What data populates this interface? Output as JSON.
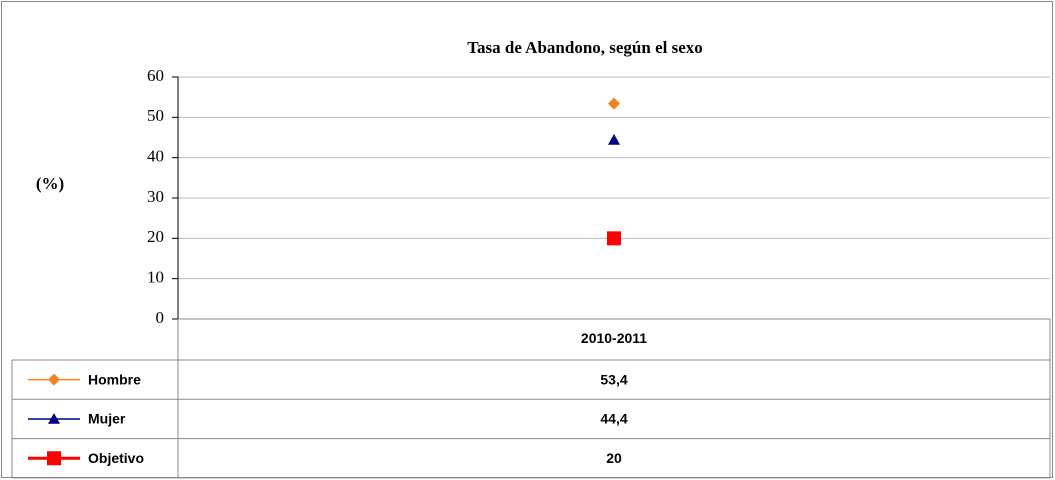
{
  "chart_data": {
    "type": "line",
    "title": "Tasa de Abandono, según el sexo",
    "ylabel": "(%)",
    "categories": [
      "2010-2011"
    ],
    "series": [
      {
        "name": "Hombre",
        "color": "#F5821F",
        "marker": "diamond",
        "values": [
          53.4
        ],
        "value_labels": [
          "53,4"
        ]
      },
      {
        "name": "Mujer",
        "color": "#000080",
        "marker": "triangle",
        "values": [
          44.4
        ],
        "value_labels": [
          "44,4"
        ]
      },
      {
        "name": "Objetivo",
        "color": "#FF0000",
        "marker": "square",
        "values": [
          20
        ]
      }
    ],
    "ylim": [
      0,
      60
    ],
    "yticks": [
      0,
      10,
      20,
      30,
      40,
      50,
      60
    ],
    "grid": true
  }
}
